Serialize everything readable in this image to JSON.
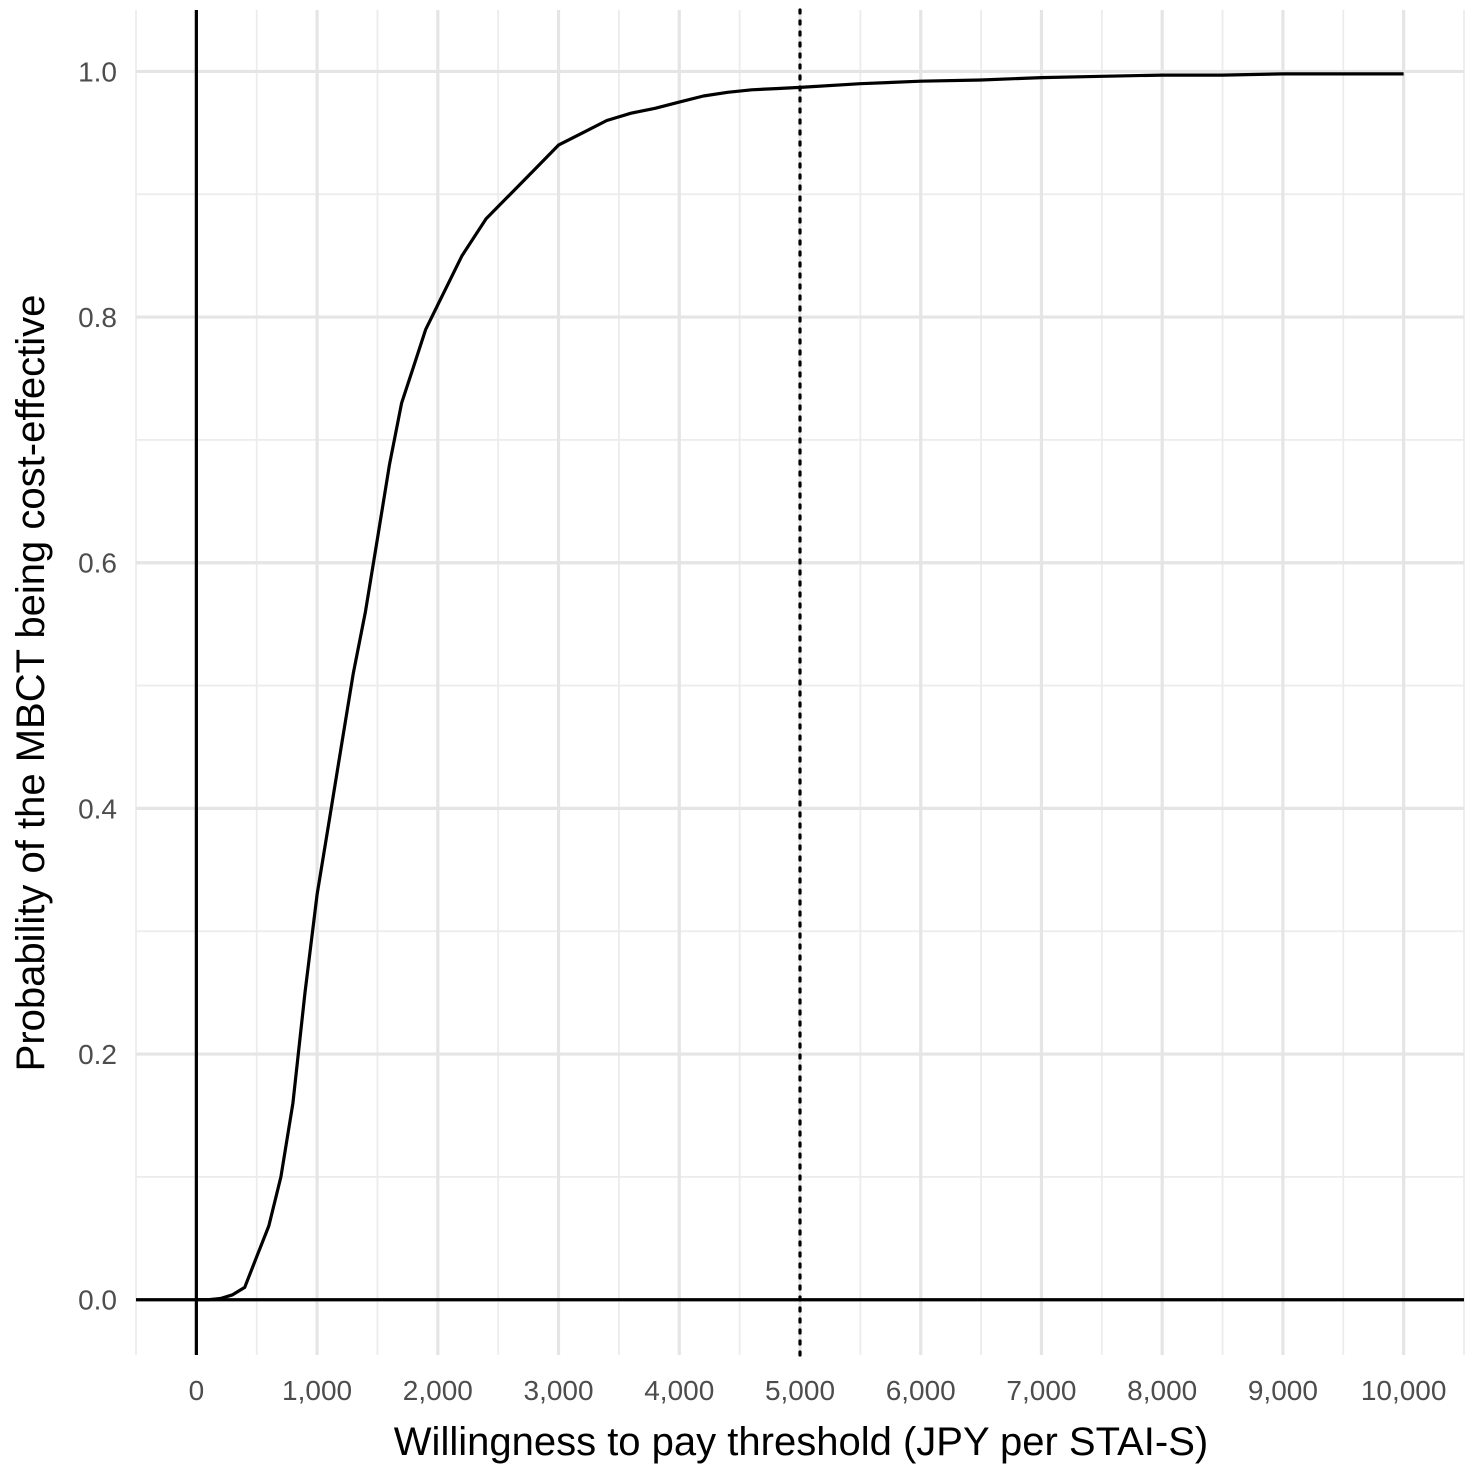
{
  "chart_data": {
    "type": "line",
    "title": "",
    "xlabel": "Willingness to pay threshold (JPY per STAI-S)",
    "ylabel": "Probability of the MBCT being cost-effective",
    "xlim": [
      -500,
      10500
    ],
    "ylim": [
      -0.045,
      1.05
    ],
    "x_ticks": [
      0,
      1000,
      2000,
      3000,
      4000,
      5000,
      6000,
      7000,
      8000,
      9000,
      10000
    ],
    "x_tick_labels": [
      "0",
      "1,000",
      "2,000",
      "3,000",
      "4,000",
      "5,000",
      "6,000",
      "7,000",
      "8,000",
      "9,000",
      "10,000"
    ],
    "y_ticks": [
      0,
      0.2,
      0.4,
      0.6,
      0.8,
      1.0
    ],
    "y_tick_labels": [
      "0.0",
      "0.2",
      "0.4",
      "0.6",
      "0.8",
      "1.0"
    ],
    "grid": true,
    "legend": "none",
    "reference_lines": [
      {
        "orientation": "vertical",
        "x": 0,
        "style": "solid"
      },
      {
        "orientation": "horizontal",
        "y": 0,
        "style": "solid"
      },
      {
        "orientation": "vertical",
        "x": 5000,
        "style": "dotted"
      }
    ],
    "series": [
      {
        "color": "#000000",
        "x": [
          0,
          100,
          200,
          300,
          400,
          500,
          600,
          700,
          800,
          900,
          1000,
          1100,
          1200,
          1300,
          1400,
          1500,
          1600,
          1700,
          1800,
          1900,
          2000,
          2200,
          2400,
          2600,
          2800,
          3000,
          3200,
          3400,
          3600,
          3800,
          4000,
          4200,
          4400,
          4600,
          4800,
          5000,
          5500,
          6000,
          6500,
          7000,
          7500,
          8000,
          8500,
          9000,
          9500,
          10000
        ],
        "y": [
          0.0,
          0.0,
          0.001,
          0.004,
          0.01,
          0.035,
          0.06,
          0.1,
          0.16,
          0.25,
          0.33,
          0.39,
          0.45,
          0.51,
          0.56,
          0.62,
          0.68,
          0.73,
          0.76,
          0.79,
          0.81,
          0.85,
          0.88,
          0.9,
          0.92,
          0.94,
          0.95,
          0.96,
          0.966,
          0.97,
          0.975,
          0.98,
          0.983,
          0.985,
          0.986,
          0.987,
          0.99,
          0.992,
          0.993,
          0.995,
          0.996,
          0.997,
          0.997,
          0.998,
          0.998,
          0.998
        ]
      }
    ]
  }
}
